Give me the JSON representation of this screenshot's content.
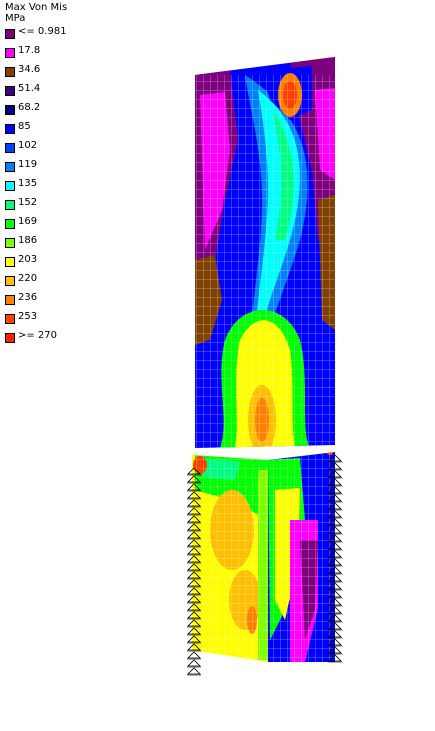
{
  "legend": {
    "title_line1": "Max Von Mis",
    "title_line2": "MPa",
    "entries": [
      {
        "label": "<= 0.981",
        "color": "#7f007f"
      },
      {
        "label": "17.8",
        "color": "#ff00ff"
      },
      {
        "label": "34.6",
        "color": "#7f4000"
      },
      {
        "label": "51.4",
        "color": "#3f007f"
      },
      {
        "label": "68.2",
        "color": "#000080"
      },
      {
        "label": "85",
        "color": "#0000ff"
      },
      {
        "label": "102",
        "color": "#0040ff"
      },
      {
        "label": "119",
        "color": "#0080ff"
      },
      {
        "label": "135",
        "color": "#00ffff"
      },
      {
        "label": "152",
        "color": "#00ff80"
      },
      {
        "label": "169",
        "color": "#00ff00"
      },
      {
        "label": "186",
        "color": "#80ff00"
      },
      {
        "label": "203",
        "color": "#ffff00"
      },
      {
        "label": "220",
        "color": "#ffbf00"
      },
      {
        "label": "236",
        "color": "#ff8000"
      },
      {
        "label": "253",
        "color": "#ff4000"
      },
      {
        "label": ">= 270",
        "color": "#ff2000"
      }
    ]
  }
}
